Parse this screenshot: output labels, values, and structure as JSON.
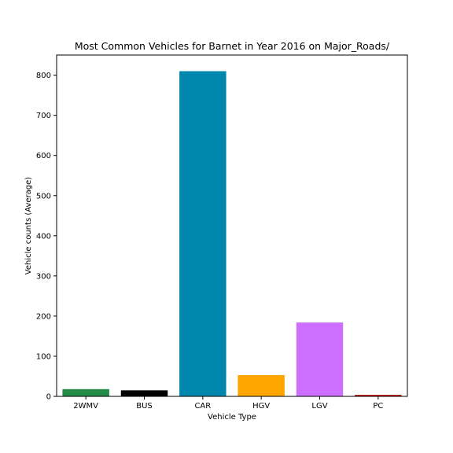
{
  "chart_data": {
    "type": "bar",
    "title": "Most Common Vehicles for Barnet in Year 2016 on Major_Roads/",
    "xlabel": "Vehicle Type",
    "ylabel": "Vehicle counts (Average)",
    "categories": [
      "2WMV",
      "BUS",
      "CAR",
      "HGV",
      "LGV",
      "PC"
    ],
    "values": [
      18,
      15,
      810,
      53,
      184,
      4
    ],
    "colors": [
      "#238b45",
      "#000000",
      "#0087ad",
      "#ffa500",
      "#cc6fff",
      "#c0201a"
    ],
    "ylim": [
      0,
      850
    ],
    "yticks": [
      0,
      100,
      200,
      300,
      400,
      500,
      600,
      700,
      800
    ],
    "grid": false,
    "legend": "none"
  }
}
